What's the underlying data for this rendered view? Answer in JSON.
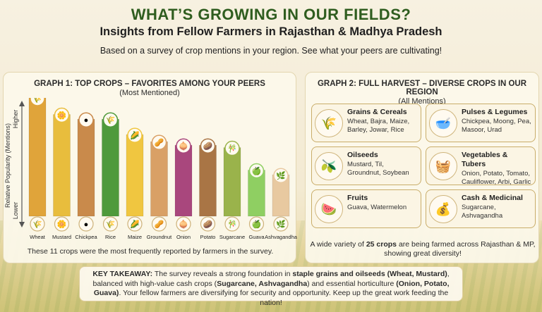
{
  "header": {
    "title": "WHAT’S GROWING IN OUR FIELDS?",
    "subtitle": "Insights from Fellow Farmers in Rajasthan & Madhya Pradesh",
    "intro": "Based on a survey of crop mentions in your region. See what your peers are cultivating!"
  },
  "graph1": {
    "title": "GRAPH 1: TOP CROPS – FAVORITES AMONG YOUR PEERS",
    "subtitle": "(Most Mentioned)",
    "note": "These 11 crops were the most frequently reported by farmers in the survey."
  },
  "chart_data": {
    "type": "bar",
    "title": "GRAPH 1: TOP CROPS – FAVORITES AMONG YOUR PEERS",
    "ylabel": "Relative Popularity (Mentions)",
    "y_high_label": "Higher",
    "y_low_label": "Lower",
    "categories": [
      "Wheat",
      "Mustard",
      "Chickpea",
      "Rice",
      "Maize",
      "Groundnut",
      "Onion",
      "Potato",
      "Sugarcane",
      "Guava",
      "Ashvagandha"
    ],
    "values": [
      100,
      86,
      82,
      82,
      69,
      63,
      60,
      60,
      58,
      39,
      35
    ],
    "ylim": [
      0,
      100
    ],
    "colors": [
      "#e0a43a",
      "#e8bd3d",
      "#c98a4b",
      "#4f9a3c",
      "#f0c640",
      "#d9a066",
      "#a9477d",
      "#a97545",
      "#9ab34b",
      "#8fcf62",
      "#e8c9a0"
    ],
    "icons": [
      "wheat-icon",
      "mustard-flower-icon",
      "chickpea-icon",
      "rice-icon",
      "maize-icon",
      "groundnut-icon",
      "onion-icon",
      "potato-icon",
      "sugarcane-icon",
      "guava-icon",
      "ashvagandha-icon"
    ],
    "grid": false
  },
  "graph2": {
    "title": "GRAPH 2: FULL HARVEST – DIVERSE CROPS IN OUR REGION",
    "subtitle": "(All Mentions)",
    "categories": [
      {
        "name": "Grains & Cereals",
        "items": "Wheat, Bajra, Maize, Barley, Jowar, Rice",
        "icon": "grains-icon"
      },
      {
        "name": "Pulses & Legumes",
        "items": "Chickpea, Moong, Pea, Masoor, Urad",
        "icon": "pulses-bowl-icon"
      },
      {
        "name": "Oilseeds",
        "items": "Mustard, Til, Groundnut, Soybean",
        "icon": "oil-bottle-icon"
      },
      {
        "name": "Vegetables & Tubers",
        "items": "Onion, Potato, Tomato, Cauliflower, Arbi, Garlic",
        "icon": "vegetable-basket-icon"
      },
      {
        "name": "Fruits",
        "items": "Guava, Watermelon",
        "icon": "fruit-bowl-icon"
      },
      {
        "name": "Cash & Medicinal",
        "items": "Sugarcane, Ashvagandha",
        "icon": "money-bag-icon"
      }
    ],
    "diversity_pre": "A wide variety of ",
    "diversity_bold": "25 crops",
    "diversity_post": " are being farmed across Rajasthan & MP, showing great diversity!"
  },
  "takeaway": {
    "label": "KEY TAKEAWAY:",
    "t1": " The survey reveals a strong foundation in ",
    "b1": "staple grains and oilseeds (Wheat, Mustard)",
    "t2": ", balanced with high-value cash crops (",
    "b2": "Sugarcane, Ashvagandha",
    "t3": ") and essential horticulture ",
    "b3": "(Onion, Potato, Guava)",
    "t4": ". Your fellow farmers are diversifying for security and opportunity. Keep up the great work feeding the nation!"
  }
}
